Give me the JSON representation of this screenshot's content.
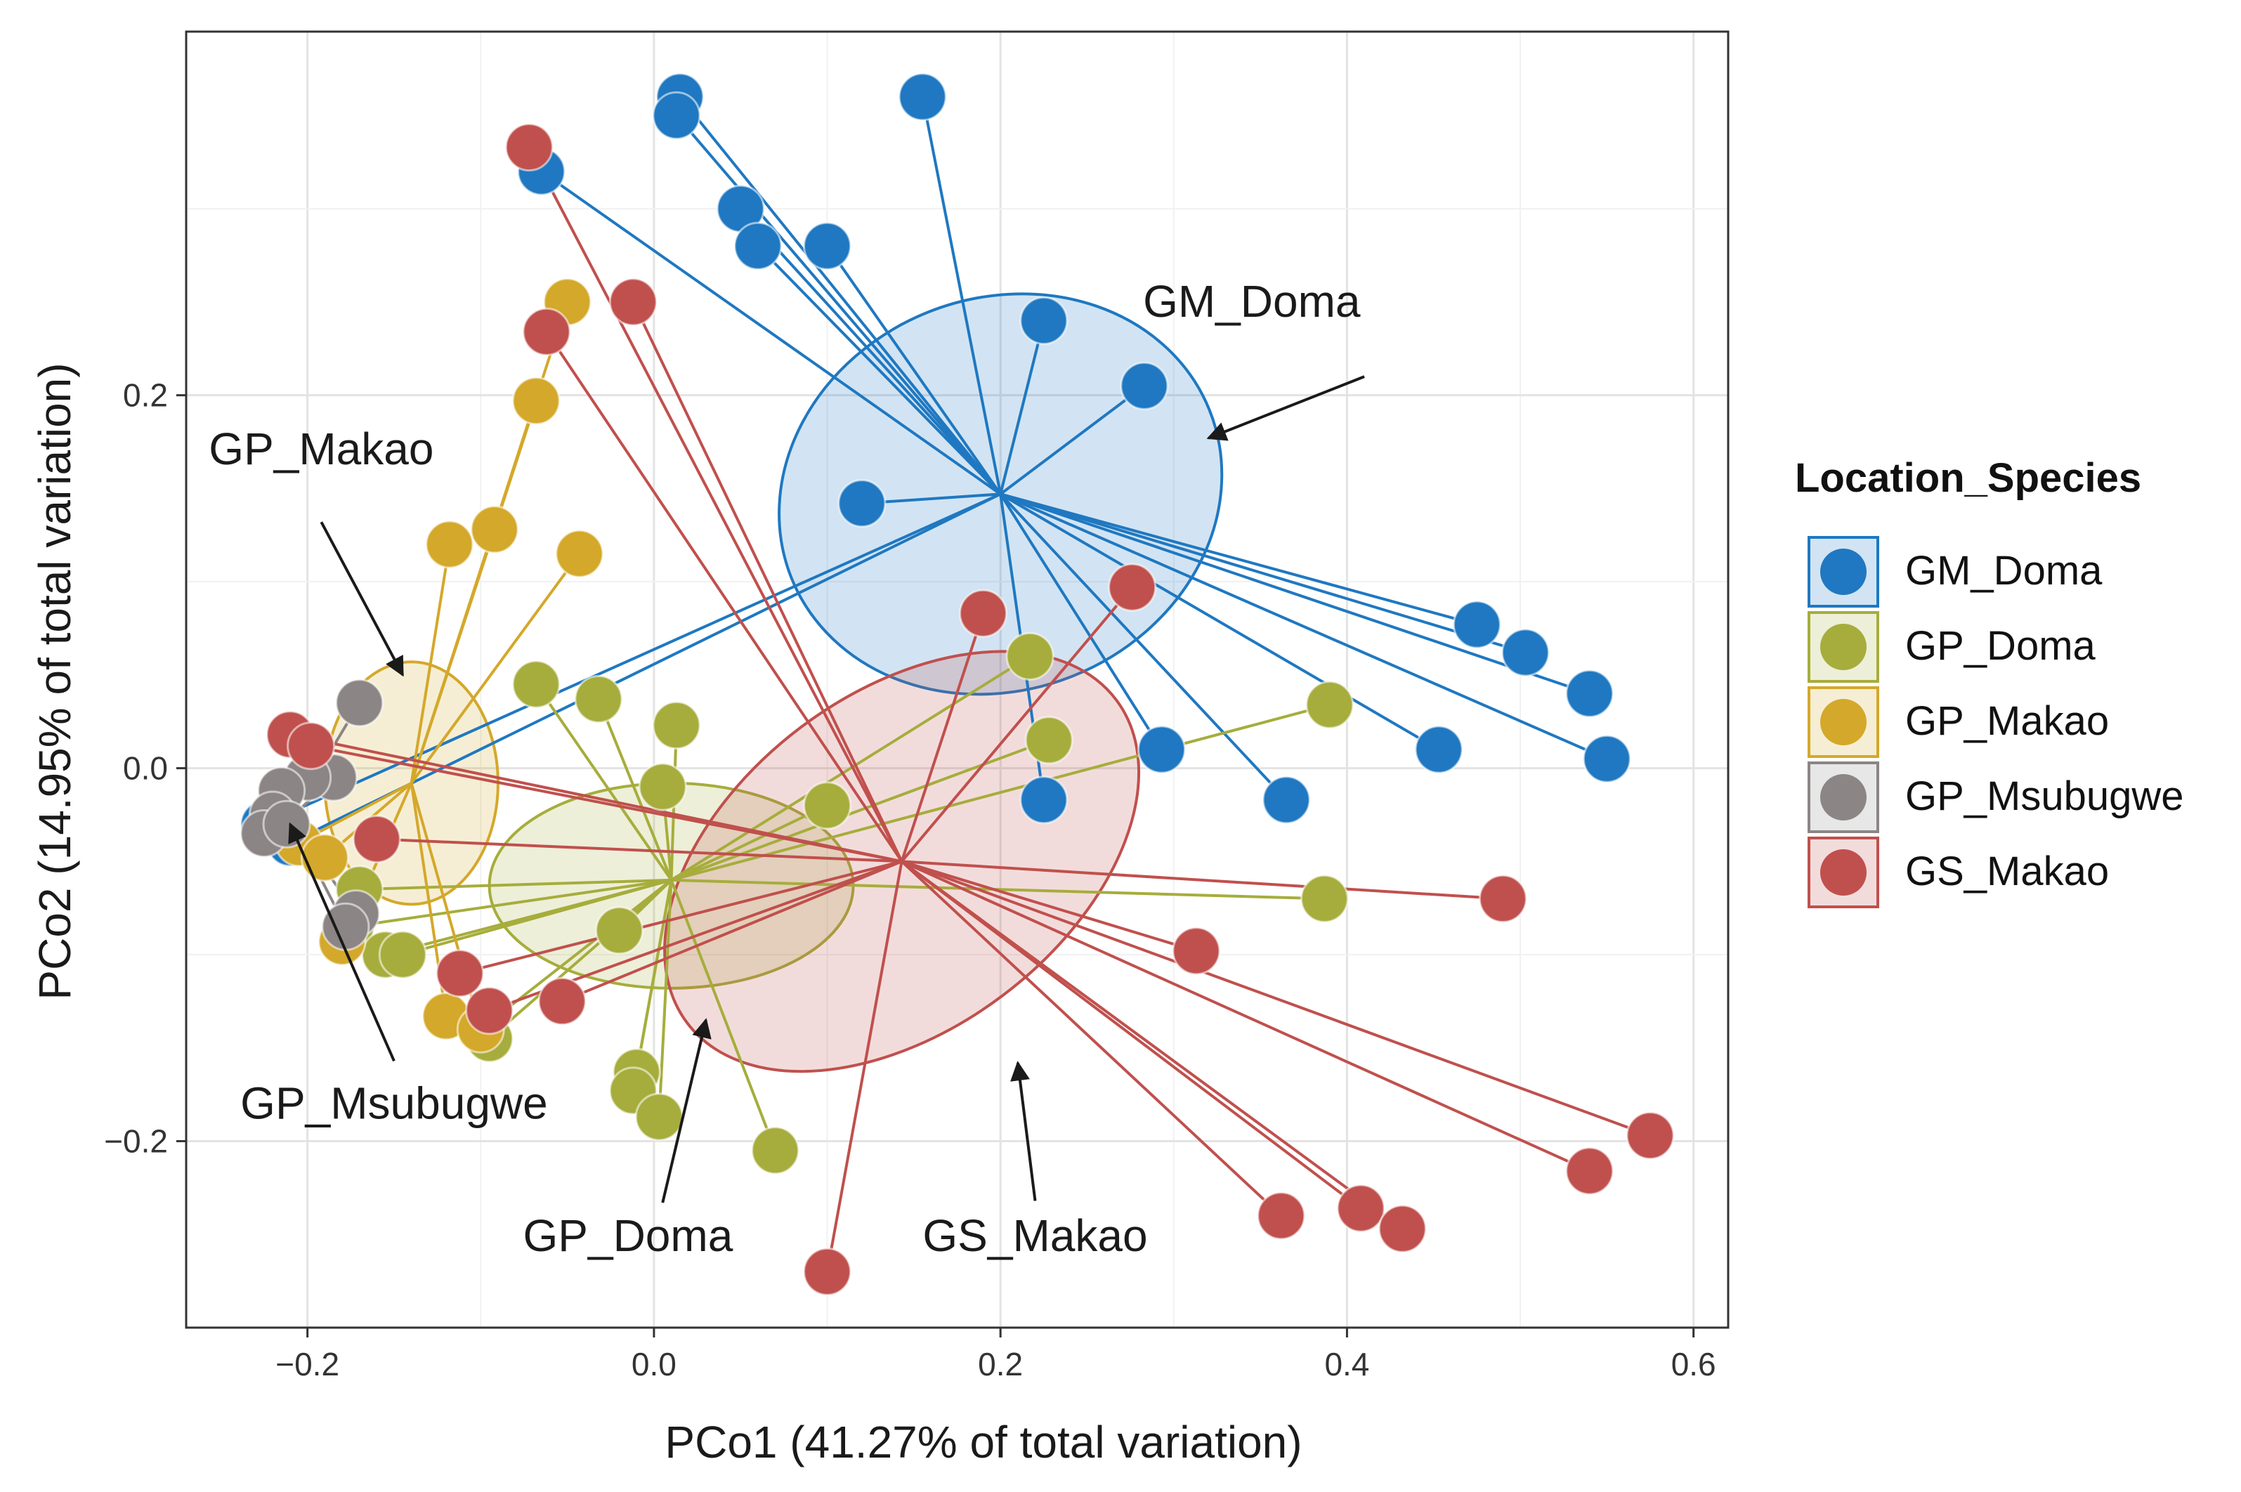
{
  "chart_data": {
    "type": "scatter",
    "xlabel": "PCo1 (41.27% of total variation)",
    "ylabel": "PCo2 (14.95% of total variation)",
    "xlim": [
      -0.27,
      0.62
    ],
    "ylim": [
      -0.3,
      0.395
    ],
    "x_ticks": [
      -0.2,
      0.0,
      0.2,
      0.4,
      0.6
    ],
    "x_tick_labels": [
      "−0.2",
      "0.0",
      "0.2",
      "0.4",
      "0.6"
    ],
    "y_ticks": [
      -0.2,
      0.0,
      0.2
    ],
    "y_tick_labels": [
      "−0.2",
      "0.0",
      "0.2"
    ],
    "grid": true,
    "legend": {
      "title": "Location_Species",
      "position": "right",
      "entries": [
        "GM_Doma",
        "GP_Doma",
        "GP_Makao",
        "GP_Msubugwe",
        "GS_Makao"
      ]
    },
    "series": [
      {
        "name": "GM_Doma",
        "color": "#1f78c1",
        "centroid": [
          0.2,
          0.147
        ],
        "ellipse": {
          "cx": 0.2,
          "cy": 0.147,
          "rx": 0.13,
          "ry": 0.105,
          "angle": -22
        },
        "points": [
          [
            0.015,
            0.36
          ],
          [
            0.013,
            0.35
          ],
          [
            0.155,
            0.36
          ],
          [
            -0.065,
            0.32
          ],
          [
            0.05,
            0.3
          ],
          [
            0.06,
            0.28
          ],
          [
            0.1,
            0.28
          ],
          [
            0.225,
            0.24
          ],
          [
            0.283,
            0.205
          ],
          [
            0.12,
            0.142
          ],
          [
            0.475,
            0.077
          ],
          [
            0.503,
            0.062
          ],
          [
            0.54,
            0.04
          ],
          [
            0.55,
            0.005
          ],
          [
            0.453,
            0.01
          ],
          [
            0.293,
            0.01
          ],
          [
            0.365,
            -0.017
          ],
          [
            0.225,
            -0.017
          ],
          [
            -0.225,
            -0.03
          ],
          [
            -0.21,
            -0.04
          ]
        ]
      },
      {
        "name": "GP_Doma",
        "color": "#a6ad3c",
        "centroid": [
          0.01,
          -0.06
        ],
        "ellipse": {
          "cx": 0.01,
          "cy": -0.063,
          "rx": 0.105,
          "ry": 0.055,
          "angle": 0
        },
        "points": [
          [
            -0.068,
            0.045
          ],
          [
            -0.032,
            0.037
          ],
          [
            0.217,
            0.06
          ],
          [
            0.39,
            0.034
          ],
          [
            0.228,
            0.015
          ],
          [
            0.013,
            0.023
          ],
          [
            0.005,
            -0.01
          ],
          [
            0.1,
            -0.02
          ],
          [
            0.387,
            -0.07
          ],
          [
            -0.02,
            -0.087
          ],
          [
            -0.17,
            -0.065
          ],
          [
            -0.175,
            -0.085
          ],
          [
            -0.155,
            -0.1
          ],
          [
            -0.145,
            -0.1
          ],
          [
            -0.1,
            -0.14
          ],
          [
            -0.095,
            -0.145
          ],
          [
            -0.01,
            -0.163
          ],
          [
            -0.012,
            -0.173
          ],
          [
            0.003,
            -0.187
          ],
          [
            0.07,
            -0.205
          ]
        ]
      },
      {
        "name": "GP_Makao",
        "color": "#d4a82a",
        "centroid": [
          -0.14,
          -0.008
        ],
        "ellipse": {
          "cx": -0.14,
          "cy": -0.008,
          "rx": 0.05,
          "ry": 0.065,
          "angle": 0
        },
        "points": [
          [
            -0.05,
            0.25
          ],
          [
            -0.068,
            0.197
          ],
          [
            -0.118,
            0.12
          ],
          [
            -0.092,
            0.128
          ],
          [
            -0.043,
            0.115
          ],
          [
            -0.205,
            -0.04
          ],
          [
            -0.19,
            -0.048
          ],
          [
            -0.18,
            -0.093
          ],
          [
            -0.12,
            -0.133
          ],
          [
            -0.1,
            -0.14
          ]
        ]
      },
      {
        "name": "GP_Msubugwe",
        "color": "#8c8585",
        "centroid": [
          -0.21,
          -0.027
        ],
        "ellipse": null,
        "points": [
          [
            -0.17,
            0.035
          ],
          [
            -0.185,
            -0.005
          ],
          [
            -0.2,
            -0.005
          ],
          [
            -0.215,
            -0.012
          ],
          [
            -0.22,
            -0.025
          ],
          [
            -0.225,
            -0.035
          ],
          [
            -0.212,
            -0.03
          ],
          [
            -0.172,
            -0.078
          ],
          [
            -0.178,
            -0.085
          ]
        ]
      },
      {
        "name": "GS_Makao",
        "color": "#c0504d",
        "centroid": [
          0.143,
          -0.05
        ],
        "ellipse": {
          "cx": 0.143,
          "cy": -0.05,
          "rx": 0.155,
          "ry": 0.09,
          "angle": -37
        },
        "points": [
          [
            -0.072,
            0.333
          ],
          [
            -0.012,
            0.25
          ],
          [
            -0.062,
            0.234
          ],
          [
            0.19,
            0.083
          ],
          [
            0.276,
            0.097
          ],
          [
            -0.21,
            0.018
          ],
          [
            -0.198,
            0.012
          ],
          [
            -0.16,
            -0.038
          ],
          [
            -0.112,
            -0.11
          ],
          [
            -0.095,
            -0.13
          ],
          [
            -0.053,
            -0.125
          ],
          [
            0.313,
            -0.098
          ],
          [
            0.49,
            -0.07
          ],
          [
            0.575,
            -0.197
          ],
          [
            0.54,
            -0.216
          ],
          [
            0.362,
            -0.24
          ],
          [
            0.408,
            -0.236
          ],
          [
            0.432,
            -0.247
          ],
          [
            0.1,
            -0.27
          ]
        ]
      }
    ],
    "annotations": [
      {
        "text": "GM_Doma",
        "label_at": [
          0.345,
          0.242
        ],
        "arrow_from": [
          0.41,
          0.21
        ],
        "arrow_to": [
          0.32,
          0.177
        ]
      },
      {
        "text": "GP_Makao",
        "label_at": [
          -0.192,
          0.163
        ],
        "arrow_from": [
          -0.192,
          0.132
        ],
        "arrow_to": [
          -0.145,
          0.05
        ]
      },
      {
        "text": "GP_Msubugwe",
        "label_at": [
          -0.15,
          -0.188
        ],
        "arrow_from": [
          -0.15,
          -0.157
        ],
        "arrow_to": [
          -0.21,
          -0.03
        ]
      },
      {
        "text": "GP_Doma",
        "label_at": [
          -0.015,
          -0.259
        ],
        "arrow_from": [
          0.005,
          -0.233
        ],
        "arrow_to": [
          0.03,
          -0.135
        ]
      },
      {
        "text": "GS_Makao",
        "label_at": [
          0.22,
          -0.259
        ],
        "arrow_from": [
          0.22,
          -0.232
        ],
        "arrow_to": [
          0.21,
          -0.158
        ]
      }
    ]
  }
}
